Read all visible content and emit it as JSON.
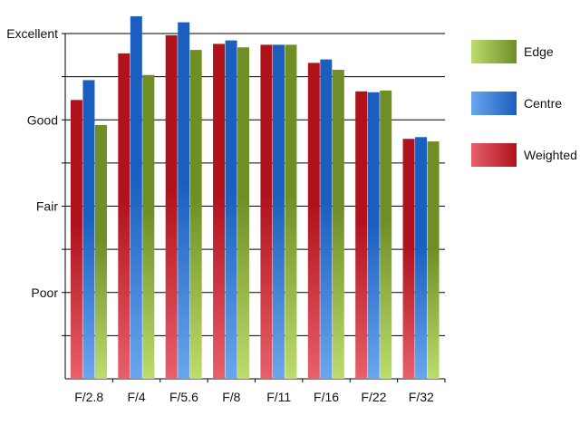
{
  "chart_data": {
    "type": "bar",
    "title": "",
    "xlabel": "",
    "ylabel": "",
    "categories": [
      "F/2.8",
      "F/4",
      "F/5.6",
      "F/8",
      "F/11",
      "F/16",
      "F/22",
      "F/32"
    ],
    "series": [
      {
        "name": "Weighted",
        "values": [
          3.23,
          3.77,
          3.98,
          3.88,
          3.87,
          3.66,
          3.33,
          2.78
        ],
        "color_top": "#b0121c",
        "color_bottom": "#e8606a"
      },
      {
        "name": "Centre",
        "values": [
          3.46,
          4.2,
          4.13,
          3.92,
          3.87,
          3.7,
          3.32,
          2.8
        ],
        "color_top": "#1a5fbf",
        "color_bottom": "#6aa6ee"
      },
      {
        "name": "Edge",
        "values": [
          2.94,
          3.52,
          3.81,
          3.84,
          3.87,
          3.58,
          3.34,
          2.75
        ],
        "color_top": "#6f8e26",
        "color_bottom": "#bcdc6c"
      }
    ],
    "ylim": [
      0,
      4.2
    ],
    "y_ticks": [
      {
        "value": 1,
        "label": "Poor"
      },
      {
        "value": 2,
        "label": "Fair"
      },
      {
        "value": 3,
        "label": "Good"
      },
      {
        "value": 4,
        "label": "Excellent"
      }
    ],
    "legend_order": [
      "Edge",
      "Centre",
      "Weighted"
    ],
    "legend_position": "right",
    "grid": true
  }
}
